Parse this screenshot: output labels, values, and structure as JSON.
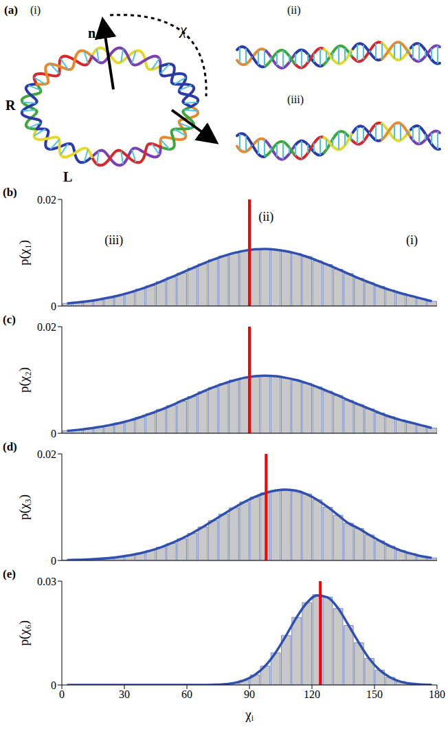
{
  "panel_a": {
    "label": "(a)",
    "views": [
      "(i)",
      "(ii)",
      "(iii)"
    ],
    "symbols": {
      "normal": "n",
      "angle": "χ",
      "right": "R",
      "left": "L"
    }
  },
  "chart_data": [
    {
      "type": "histogram",
      "title": "(b)",
      "y_label": "p(χ₁)",
      "bins": [
        0,
        5,
        10,
        15,
        20,
        25,
        30,
        35,
        40,
        45,
        50,
        55,
        60,
        65,
        70,
        75,
        80,
        85,
        90,
        95,
        100,
        105,
        110,
        115,
        120,
        125,
        130,
        135,
        140,
        145,
        150,
        155,
        160,
        165,
        170,
        175,
        180
      ],
      "values": [
        0.0005,
        0.0007,
        0.0009,
        0.0012,
        0.0016,
        0.002,
        0.0025,
        0.0032,
        0.0038,
        0.0046,
        0.0054,
        0.0062,
        0.0071,
        0.0079,
        0.0087,
        0.0094,
        0.0099,
        0.0104,
        0.0106,
        0.0107,
        0.0106,
        0.0103,
        0.0099,
        0.0093,
        0.0085,
        0.0078,
        0.0069,
        0.0061,
        0.0052,
        0.0044,
        0.0037,
        0.003,
        0.0024,
        0.0019,
        0.0014,
        0.0009
      ],
      "color": "#c8c8c8",
      "fit": {
        "x": [
          2.5,
          7.5,
          12.5,
          17.5,
          22.5,
          27.5,
          32.5,
          37.5,
          42.5,
          47.5,
          52.5,
          57.5,
          62.5,
          67.5,
          72.5,
          77.5,
          82.5,
          87.5,
          92.5,
          97.5,
          102.5,
          107.5,
          112.5,
          117.5,
          122.5,
          127.5,
          132.5,
          137.5,
          142.5,
          147.5,
          152.5,
          157.5,
          162.5,
          167.5,
          172.5,
          177.5
        ],
        "values": [
          0.00049,
          0.00067,
          0.0009,
          0.0012,
          0.00157,
          0.002,
          0.00253,
          0.00314,
          0.00383,
          0.00458,
          0.00539,
          0.00624,
          0.00709,
          0.00792,
          0.00869,
          0.00938,
          0.00995,
          0.01037,
          0.01063,
          0.0107,
          0.01059,
          0.0103,
          0.00985,
          0.00926,
          0.00854,
          0.00775,
          0.00692,
          0.00606,
          0.00522,
          0.00443,
          0.00368,
          0.00301,
          0.00242,
          0.00191,
          0.0014,
          0.0009
        ],
        "color": "#3050b0"
      },
      "reference_line": {
        "x": 90,
        "color": "#ff0000"
      },
      "annotations": [
        {
          "text": "(iii)",
          "x": 25,
          "y": 0.0125
        },
        {
          "text": "(ii)",
          "x": 98,
          "y": 0.0168
        },
        {
          "text": "(i)",
          "x": 168,
          "y": 0.0125
        }
      ],
      "xlim": [
        0,
        180
      ],
      "xticks": [
        0,
        30,
        60,
        90,
        120,
        150,
        180
      ],
      "ylim": [
        0,
        0.02
      ],
      "yticks": [
        0,
        0.02
      ],
      "tick_labels": "y"
    },
    {
      "type": "histogram",
      "title": "(c)",
      "y_label": "p(χ₂)",
      "bins": [
        0,
        5,
        10,
        15,
        20,
        25,
        30,
        35,
        40,
        45,
        50,
        55,
        60,
        65,
        70,
        75,
        80,
        85,
        90,
        95,
        100,
        105,
        110,
        115,
        120,
        125,
        130,
        135,
        140,
        145,
        150,
        155,
        160,
        165,
        170,
        175,
        180
      ],
      "values": [
        0.0005,
        0.0006,
        0.0009,
        0.0011,
        0.0015,
        0.0019,
        0.0024,
        0.003,
        0.0037,
        0.0045,
        0.0052,
        0.006,
        0.0069,
        0.0078,
        0.0086,
        0.0093,
        0.01,
        0.0104,
        0.0106,
        0.0108,
        0.0108,
        0.0104,
        0.0099,
        0.0094,
        0.0087,
        0.0079,
        0.0071,
        0.0062,
        0.0054,
        0.0046,
        0.0038,
        0.0031,
        0.0025,
        0.002,
        0.0015,
        0.001
      ],
      "color": "#c8c8c8",
      "fit": {
        "x": [
          2.5,
          7.5,
          12.5,
          17.5,
          22.5,
          27.5,
          32.5,
          37.5,
          42.5,
          47.5,
          52.5,
          57.5,
          62.5,
          67.5,
          72.5,
          77.5,
          82.5,
          87.5,
          92.5,
          97.5,
          102.5,
          107.5,
          112.5,
          117.5,
          122.5,
          127.5,
          132.5,
          137.5,
          142.5,
          147.5,
          152.5,
          157.5,
          162.5,
          167.5,
          172.5,
          177.5
        ],
        "values": [
          0.00045,
          0.00063,
          0.00086,
          0.00115,
          0.0015,
          0.0019,
          0.0024,
          0.003,
          0.0037,
          0.0044,
          0.0052,
          0.0061,
          0.0069,
          0.0078,
          0.0086,
          0.0093,
          0.0099,
          0.0104,
          0.0107,
          0.0108,
          0.0107,
          0.0104,
          0.01,
          0.0094,
          0.0087,
          0.0079,
          0.0071,
          0.0062,
          0.0054,
          0.0046,
          0.0038,
          0.0031,
          0.0025,
          0.002,
          0.0015,
          0.001
        ],
        "color": "#3050b0"
      },
      "reference_line": {
        "x": 90,
        "color": "#ff0000"
      },
      "xlim": [
        0,
        180
      ],
      "xticks": [
        0,
        30,
        60,
        90,
        120,
        150,
        180
      ],
      "ylim": [
        0,
        0.02
      ],
      "yticks": [
        0,
        0.02
      ],
      "tick_labels": "y"
    },
    {
      "type": "histogram",
      "title": "(d)",
      "y_label": "p(χ₃)",
      "bins": [
        0,
        5,
        10,
        15,
        20,
        25,
        30,
        35,
        40,
        45,
        50,
        55,
        60,
        65,
        70,
        75,
        80,
        85,
        90,
        95,
        100,
        105,
        110,
        115,
        120,
        125,
        130,
        135,
        140,
        145,
        150,
        155,
        160,
        165,
        170,
        175,
        180
      ],
      "values": [
        0.0001,
        0.0001,
        0.0002,
        0.0003,
        0.0005,
        0.0007,
        0.001,
        0.0014,
        0.0019,
        0.0025,
        0.0032,
        0.0041,
        0.0051,
        0.0063,
        0.0075,
        0.0087,
        0.0099,
        0.011,
        0.0119,
        0.0127,
        0.0131,
        0.0134,
        0.0131,
        0.0125,
        0.0114,
        0.01,
        0.0085,
        0.007,
        0.006,
        0.0048,
        0.0037,
        0.0027,
        0.0019,
        0.0013,
        0.0008,
        0.0005
      ],
      "color": "#c8c8c8",
      "fit": {
        "x": [
          2.5,
          7.5,
          12.5,
          17.5,
          22.5,
          27.5,
          32.5,
          37.5,
          42.5,
          47.5,
          52.5,
          57.5,
          62.5,
          67.5,
          72.5,
          77.5,
          82.5,
          87.5,
          92.5,
          97.5,
          102.5,
          107.5,
          112.5,
          117.5,
          122.5,
          127.5,
          132.5,
          137.5,
          142.5,
          147.5,
          152.5,
          157.5,
          162.5,
          167.5,
          172.5,
          177.5
        ],
        "values": [
          8e-05,
          0.00013,
          0.0002,
          0.00031,
          0.00046,
          0.00068,
          0.00097,
          0.00136,
          0.00186,
          0.00248,
          0.00323,
          0.00412,
          0.00514,
          0.00626,
          0.00746,
          0.00868,
          0.00987,
          0.01096,
          0.01191,
          0.01265,
          0.01312,
          0.0133,
          0.0131,
          0.01244,
          0.01139,
          0.01004,
          0.00853,
          0.00699,
          0.006,
          0.0048,
          0.0037,
          0.0027,
          0.0019,
          0.0013,
          0.0008,
          0.0005
        ],
        "color": "#3050b0"
      },
      "reference_line": {
        "x": 98,
        "color": "#ff0000"
      },
      "xlim": [
        0,
        180
      ],
      "xticks": [
        0,
        30,
        60,
        90,
        120,
        150,
        180
      ],
      "ylim": [
        0,
        0.02
      ],
      "yticks": [
        0,
        0.02
      ],
      "tick_labels": "y"
    },
    {
      "type": "histogram",
      "title": "(e)",
      "y_label": "p(χ₆)",
      "x_label": "χᵢ",
      "bins": [
        0,
        5,
        10,
        15,
        20,
        25,
        30,
        35,
        40,
        45,
        50,
        55,
        60,
        65,
        70,
        75,
        80,
        85,
        90,
        95,
        100,
        105,
        110,
        115,
        120,
        125,
        130,
        135,
        140,
        145,
        150,
        155,
        160,
        165,
        170,
        175,
        180
      ],
      "values": [
        0,
        0,
        0,
        0,
        0,
        0,
        0,
        0,
        0,
        0,
        0,
        0,
        0,
        0,
        0.0001,
        0.0002,
        0.0006,
        0.0014,
        0.0029,
        0.0055,
        0.0093,
        0.0143,
        0.0195,
        0.0238,
        0.0261,
        0.0254,
        0.0221,
        0.0172,
        0.0122,
        0.0077,
        0.0043,
        0.0022,
        0.001,
        0.0004,
        0.0001,
        0
      ],
      "color": "#c8c8c8",
      "fit": {
        "x": [
          2.5,
          7.5,
          12.5,
          17.5,
          22.5,
          27.5,
          32.5,
          37.5,
          42.5,
          47.5,
          52.5,
          57.5,
          62.5,
          67.5,
          72.5,
          77.5,
          82.5,
          87.5,
          92.5,
          97.5,
          102.5,
          107.5,
          112.5,
          117.5,
          122.5,
          127.5,
          132.5,
          137.5,
          142.5,
          147.5,
          152.5,
          157.5,
          162.5,
          167.5,
          172.5,
          177.5
        ],
        "values": [
          0,
          0,
          0,
          0,
          0,
          0,
          0,
          0,
          0,
          0,
          0,
          0,
          0,
          2e-05,
          7e-05,
          0.0002,
          0.00057,
          0.00135,
          0.00287,
          0.00546,
          0.0093,
          0.0142,
          0.0194,
          0.0237,
          0.0259,
          0.0253,
          0.0222,
          0.0173,
          0.0122,
          0.0076,
          0.0043,
          0.0022,
          0.00097,
          0.00039,
          0.00014,
          4e-05
        ],
        "color": "#3050b0"
      },
      "reference_line": {
        "x": 124,
        "color": "#ff0000"
      },
      "xlim": [
        0,
        180
      ],
      "xticks": [
        0,
        30,
        60,
        90,
        120,
        150,
        180
      ],
      "ylim": [
        0,
        0.03
      ],
      "yticks": [
        0,
        0.03
      ]
    }
  ]
}
